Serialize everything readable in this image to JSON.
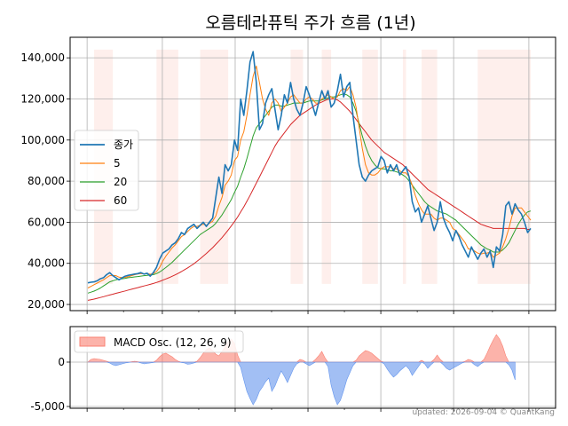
{
  "chart_data": [
    {
      "type": "line",
      "title": "오름테라퓨틱 주가 흐름 (1년)",
      "xlabel": "",
      "ylabel": "",
      "x_tick_labels": [],
      "ylim": [
        17000,
        150000
      ],
      "yticks": [
        20000,
        40000,
        60000,
        80000,
        100000,
        120000,
        140000
      ],
      "ytick_labels": [
        "20,000",
        "40,000",
        "60,000",
        "80,000",
        "100,000",
        "120,000",
        "140,000"
      ],
      "grid": true,
      "legend_position": "center-left",
      "series": [
        {
          "name": "종가",
          "color": "#1f77b4",
          "values": [
            30500,
            30800,
            31000,
            31500,
            32500,
            33000,
            34500,
            35500,
            34000,
            33000,
            32000,
            33000,
            33800,
            34200,
            34500,
            34800,
            35000,
            35500,
            34800,
            35200,
            33800,
            35500,
            38000,
            42000,
            45000,
            46000,
            47000,
            49000,
            50000,
            52000,
            55000,
            54000,
            57000,
            58000,
            59000,
            57000,
            58500,
            60000,
            58000,
            60000,
            62000,
            72000,
            82000,
            74000,
            88000,
            85000,
            88000,
            100000,
            95000,
            120000,
            112000,
            124000,
            138000,
            143000,
            128000,
            105000,
            108000,
            118000,
            122000,
            125000,
            115000,
            105000,
            112000,
            122000,
            118000,
            128000,
            120000,
            115000,
            112000,
            118000,
            126000,
            122000,
            117000,
            112000,
            118000,
            124000,
            120000,
            124000,
            116000,
            118000,
            124000,
            132000,
            121000,
            126000,
            128000,
            112000,
            100000,
            88000,
            82000,
            80000,
            83000,
            85000,
            86000,
            87000,
            92000,
            90000,
            84000,
            88000,
            85000,
            88000,
            83000,
            85000,
            87000,
            82000,
            70000,
            65000,
            67000,
            60000,
            64000,
            68000,
            62000,
            56000,
            60000,
            70000,
            62000,
            58000,
            55000,
            51000,
            56000,
            53000,
            49000,
            46000,
            43000,
            48000,
            45000,
            42000,
            45000,
            47000,
            43000,
            46000,
            38000,
            48000,
            46000,
            54000,
            68000,
            70000,
            64000,
            69000,
            66000,
            64000,
            60000,
            55000,
            57000
          ],
          "markers": false
        },
        {
          "name": "5",
          "color": "#ff7f0e",
          "values": [
            28000,
            28800,
            29600,
            30400,
            31200,
            32000,
            33000,
            34000,
            34200,
            34000,
            33300,
            33000,
            33200,
            33500,
            34000,
            34500,
            34800,
            35000,
            34900,
            35000,
            34700,
            35000,
            36000,
            38000,
            41000,
            43500,
            45500,
            47500,
            49000,
            51000,
            53000,
            54000,
            55500,
            57000,
            58000,
            58000,
            58500,
            59000,
            58500,
            59500,
            60500,
            63000,
            68000,
            72000,
            78000,
            80000,
            83000,
            90000,
            92000,
            100000,
            104000,
            112000,
            122000,
            131000,
            136000,
            128000,
            120000,
            115000,
            112000,
            118000,
            120000,
            118000,
            114000,
            116000,
            118000,
            121000,
            122000,
            120000,
            118000,
            118000,
            120000,
            121000,
            120000,
            118000,
            118000,
            120000,
            121000,
            122000,
            121000,
            120000,
            121000,
            124000,
            125000,
            124000,
            126000,
            122000,
            116000,
            106000,
            96000,
            88000,
            84000,
            83000,
            83000,
            84000,
            86000,
            87000,
            87000,
            87000,
            86000,
            86000,
            85000,
            84000,
            84000,
            82000,
            78000,
            73000,
            69000,
            66000,
            64000,
            64000,
            64000,
            62000,
            61000,
            62000,
            62000,
            61000,
            60000,
            57000,
            56000,
            54000,
            52000,
            50000,
            47000,
            47000,
            46000,
            45000,
            44500,
            45000,
            45000,
            45500,
            43000,
            44000,
            45000,
            48000,
            52000,
            57000,
            63000,
            67000,
            67000,
            67000,
            65000,
            63000,
            61000
          ],
          "markers": false
        },
        {
          "name": "20",
          "color": "#2ca02c",
          "values": [
            25500,
            26000,
            26500,
            27200,
            28000,
            29000,
            30000,
            31000,
            31500,
            32000,
            32300,
            32500,
            32700,
            33000,
            33200,
            33400,
            33600,
            33800,
            34000,
            34200,
            34300,
            34500,
            35000,
            35800,
            36800,
            38000,
            39200,
            40500,
            42000,
            43500,
            45000,
            46500,
            48000,
            49500,
            51000,
            52500,
            54000,
            55000,
            56000,
            57000,
            58000,
            59500,
            61500,
            63500,
            66000,
            68500,
            71000,
            74500,
            77500,
            82000,
            86000,
            91000,
            96500,
            102000,
            106000,
            108000,
            110000,
            112000,
            114000,
            116000,
            117000,
            117000,
            116500,
            116500,
            117000,
            117500,
            118000,
            118000,
            118000,
            118000,
            118500,
            119000,
            119000,
            119000,
            119000,
            119500,
            120000,
            120500,
            121000,
            121000,
            121500,
            122000,
            122500,
            122000,
            121000,
            118000,
            114000,
            108000,
            102000,
            97000,
            93000,
            90000,
            88000,
            86500,
            86000,
            86000,
            85500,
            85000,
            85000,
            84500,
            84000,
            83000,
            82000,
            80000,
            78000,
            76000,
            74000,
            72000,
            70000,
            68500,
            67500,
            66500,
            65500,
            65000,
            64500,
            64000,
            63000,
            62000,
            61000,
            59500,
            58000,
            56500,
            55000,
            53500,
            52000,
            50500,
            49000,
            48000,
            47000,
            46500,
            45500,
            45500,
            45500,
            46500,
            48000,
            50000,
            53000,
            56000,
            59000,
            61500,
            63500,
            65000,
            65500
          ],
          "markers": false
        },
        {
          "name": "60",
          "color": "#d62728",
          "values": [
            22000,
            22300,
            22600,
            23000,
            23400,
            23800,
            24200,
            24600,
            25000,
            25400,
            25800,
            26200,
            26600,
            27000,
            27400,
            27800,
            28200,
            28600,
            29000,
            29400,
            29800,
            30200,
            30700,
            31200,
            31800,
            32400,
            33000,
            33700,
            34400,
            35200,
            36000,
            36900,
            37800,
            38800,
            39800,
            41000,
            42200,
            43500,
            44800,
            46200,
            47600,
            49200,
            50800,
            52500,
            54300,
            56200,
            58200,
            60300,
            62500,
            65000,
            67500,
            70200,
            73000,
            76000,
            79000,
            82000,
            85000,
            88000,
            91000,
            94000,
            97000,
            99500,
            101500,
            103500,
            105500,
            107500,
            109000,
            110500,
            112000,
            113000,
            114000,
            115000,
            116000,
            117000,
            117800,
            118500,
            119200,
            119800,
            120000,
            120000,
            119500,
            118500,
            117000,
            115500,
            114000,
            112000,
            110000,
            108000,
            106000,
            104000,
            102000,
            100000,
            98500,
            97000,
            95500,
            94000,
            93000,
            92000,
            91000,
            90000,
            89000,
            88000,
            86500,
            85000,
            83500,
            82000,
            80500,
            79000,
            77500,
            76000,
            75000,
            74000,
            73000,
            72000,
            71000,
            70000,
            69000,
            68000,
            67000,
            66000,
            65000,
            64000,
            63000,
            62000,
            61000,
            60000,
            59000,
            58500,
            58000,
            57500,
            57000,
            57000,
            57000,
            57000,
            57000,
            57000,
            57000,
            57000,
            57000,
            57000,
            57000,
            56500,
            56500
          ],
          "markers": false
        }
      ],
      "shaded_ranges_index": [
        [
          2,
          10
        ],
        [
          28,
          37
        ],
        [
          46,
          57
        ],
        [
          83,
          87
        ],
        [
          95,
          99
        ],
        [
          112,
          118
        ],
        [
          128,
          129
        ],
        [
          136,
          142
        ],
        [
          159,
          180
        ]
      ]
    },
    {
      "type": "area",
      "title": "",
      "xlabel": "",
      "ylabel": "",
      "ylim": [
        -5200,
        4000
      ],
      "yticks": [
        -5000,
        0
      ],
      "ytick_labels": [
        "-5,000",
        "0"
      ],
      "grid": true,
      "legend_position": "top-left",
      "series": [
        {
          "name": "MACD Osc. (12, 26, 9)",
          "positive_color": "#fa8072",
          "negative_color": "#6495ed",
          "values": [
            0,
            300,
            400,
            350,
            300,
            200,
            100,
            -100,
            -300,
            -400,
            -300,
            -200,
            -100,
            -50,
            50,
            100,
            50,
            -100,
            -200,
            -150,
            -100,
            -50,
            200,
            600,
            900,
            1000,
            800,
            600,
            300,
            100,
            -50,
            -100,
            -250,
            -200,
            -100,
            100,
            500,
            1000,
            1400,
            1600,
            1300,
            900,
            700,
            1200,
            1700,
            2300,
            2600,
            2100,
            800,
            -600,
            -2000,
            -3300,
            -4100,
            -4800,
            -4200,
            -3300,
            -2800,
            -2200,
            -1800,
            -3300,
            -2700,
            -1800,
            -1000,
            -1600,
            -2300,
            -1500,
            -700,
            -200,
            300,
            200,
            -200,
            -400,
            -200,
            300,
            700,
            1200,
            500,
            -500,
            -2600,
            -3900,
            -4800,
            -4300,
            -3200,
            -2000,
            -1200,
            -400,
            200,
            700,
            1000,
            1300,
            1200,
            1000,
            700,
            400,
            100,
            -200,
            -800,
            -1300,
            -1700,
            -1400,
            -1000,
            -700,
            -400,
            -800,
            -1500,
            -1000,
            -500,
            200,
            -200,
            -700,
            -300,
            300,
            800,
            300,
            -300,
            -700,
            -900,
            -700,
            -500,
            -300,
            -100,
            100,
            300,
            200,
            -300,
            -500,
            -200,
            300,
            1000,
            1800,
            2500,
            3100,
            2600,
            1800,
            700,
            -300,
            -900,
            -2000
          ],
          "markers": false
        }
      ]
    }
  ],
  "footer": {
    "text": "updated: 2026-09-04 © QuantKang"
  }
}
